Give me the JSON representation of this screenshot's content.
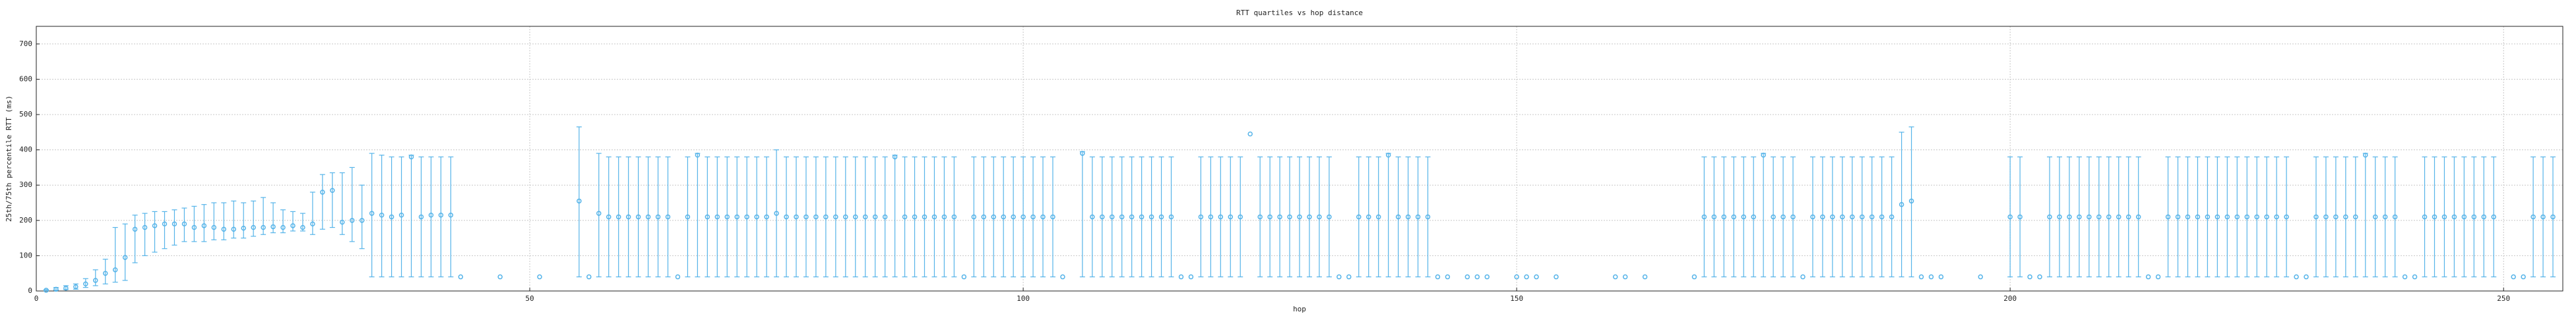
{
  "chart_data": {
    "type": "errorbar",
    "title": "RTT quartiles vs hop distance",
    "x_label": "hop",
    "y_label": "25th/75th percentile RTT (ms)",
    "color": "#56b4e9",
    "grid": true,
    "xlim": [
      0,
      256
    ],
    "ylim": [
      0,
      750
    ],
    "xticks": [
      0,
      50,
      100,
      150,
      200,
      250
    ],
    "yticks": [
      0,
      100,
      200,
      300,
      400,
      500,
      600,
      700
    ],
    "x": [
      1,
      2,
      3,
      4,
      5,
      6,
      7,
      8,
      9,
      10,
      11,
      12,
      13,
      14,
      15,
      16,
      17,
      18,
      19,
      20,
      21,
      22,
      23,
      24,
      25,
      26,
      27,
      28,
      29,
      30,
      31,
      32,
      33,
      34,
      35,
      36,
      37,
      38,
      39,
      40,
      41,
      42,
      43,
      47,
      51,
      55,
      56,
      57,
      58,
      59,
      60,
      61,
      62,
      63,
      64,
      65,
      66,
      67,
      68,
      69,
      70,
      71,
      72,
      73,
      74,
      75,
      76,
      77,
      78,
      79,
      80,
      81,
      82,
      83,
      84,
      85,
      86,
      87,
      88,
      89,
      90,
      91,
      92,
      93,
      94,
      95,
      96,
      97,
      98,
      99,
      100,
      101,
      102,
      103,
      104,
      106,
      107,
      108,
      109,
      110,
      111,
      112,
      113,
      114,
      115,
      116,
      117,
      118,
      119,
      120,
      121,
      122,
      123,
      124,
      125,
      126,
      127,
      128,
      129,
      130,
      131,
      132,
      133,
      134,
      135,
      136,
      137,
      138,
      139,
      140,
      141,
      142,
      143,
      145,
      146,
      147,
      150,
      151,
      152,
      154,
      160,
      161,
      163,
      168,
      169,
      170,
      171,
      172,
      173,
      174,
      175,
      176,
      177,
      178,
      179,
      180,
      181,
      182,
      183,
      184,
      185,
      186,
      187,
      188,
      189,
      190,
      191,
      192,
      193,
      197,
      200,
      201,
      202,
      203,
      204,
      205,
      206,
      207,
      208,
      209,
      210,
      211,
      212,
      213,
      214,
      215,
      216,
      217,
      218,
      219,
      220,
      221,
      222,
      223,
      224,
      225,
      226,
      227,
      228,
      229,
      230,
      231,
      232,
      233,
      234,
      235,
      236,
      237,
      238,
      239,
      240,
      241,
      242,
      243,
      244,
      245,
      246,
      247,
      248,
      249,
      251,
      252,
      253,
      254,
      255
    ],
    "values": [
      2,
      5,
      8,
      12,
      20,
      30,
      50,
      60,
      95,
      175,
      180,
      185,
      190,
      190,
      190,
      180,
      185,
      180,
      175,
      175,
      178,
      180,
      180,
      182,
      180,
      185,
      180,
      190,
      280,
      285,
      195,
      200,
      200,
      220,
      215,
      210,
      215,
      380,
      210,
      215,
      215,
      215,
      40,
      40,
      40,
      255,
      40,
      220,
      210,
      210,
      210,
      210,
      210,
      210,
      210,
      40,
      210,
      385,
      210,
      210,
      210,
      210,
      210,
      210,
      210,
      220,
      210,
      210,
      210,
      210,
      210,
      210,
      210,
      210,
      210,
      210,
      210,
      380,
      210,
      210,
      210,
      210,
      210,
      210,
      40,
      210,
      210,
      210,
      210,
      210,
      210,
      210,
      210,
      210,
      40,
      390,
      210,
      210,
      210,
      210,
      210,
      210,
      210,
      210,
      210,
      40,
      40,
      210,
      210,
      210,
      210,
      210,
      445,
      210,
      210,
      210,
      210,
      210,
      210,
      210,
      210,
      40,
      40,
      210,
      210,
      210,
      385,
      210,
      210,
      210,
      210,
      40,
      40,
      40,
      40,
      40,
      40,
      40,
      40,
      40,
      40,
      40,
      40,
      40,
      210,
      210,
      210,
      210,
      210,
      210,
      385,
      210,
      210,
      210,
      40,
      210,
      210,
      210,
      210,
      210,
      210,
      210,
      210,
      210,
      245,
      255,
      40,
      40,
      40,
      40,
      210,
      210,
      40,
      40,
      210,
      210,
      210,
      210,
      210,
      210,
      210,
      210,
      210,
      210,
      40,
      40,
      210,
      210,
      210,
      210,
      210,
      210,
      210,
      210,
      210,
      210,
      210,
      210,
      210,
      40,
      40,
      210,
      210,
      210,
      210,
      210,
      385,
      210,
      210,
      210,
      40,
      40,
      210,
      210,
      210,
      210,
      210,
      210,
      210,
      210,
      40,
      40,
      210,
      210,
      210
    ],
    "q1": [
      1,
      2,
      4,
      5,
      10,
      15,
      20,
      25,
      30,
      80,
      100,
      110,
      120,
      130,
      140,
      140,
      140,
      145,
      145,
      150,
      150,
      155,
      160,
      165,
      165,
      170,
      170,
      160,
      175,
      180,
      160,
      140,
      120,
      40,
      40,
      40,
      40,
      40,
      40,
      40,
      40,
      40,
      null,
      null,
      null,
      40,
      null,
      40,
      40,
      40,
      40,
      40,
      40,
      40,
      40,
      null,
      40,
      40,
      40,
      40,
      40,
      40,
      40,
      40,
      40,
      40,
      40,
      40,
      40,
      40,
      40,
      40,
      40,
      40,
      40,
      40,
      40,
      40,
      40,
      40,
      40,
      40,
      40,
      40,
      null,
      40,
      40,
      40,
      40,
      40,
      40,
      40,
      40,
      40,
      null,
      40,
      40,
      40,
      40,
      40,
      40,
      40,
      40,
      40,
      40,
      null,
      null,
      40,
      40,
      40,
      40,
      40,
      null,
      40,
      40,
      40,
      40,
      40,
      40,
      40,
      40,
      null,
      null,
      40,
      40,
      40,
      40,
      40,
      40,
      40,
      40,
      null,
      null,
      null,
      null,
      null,
      null,
      null,
      null,
      null,
      null,
      null,
      null,
      null,
      40,
      40,
      40,
      40,
      40,
      40,
      40,
      40,
      40,
      40,
      null,
      40,
      40,
      40,
      40,
      40,
      40,
      40,
      40,
      40,
      40,
      40,
      null,
      null,
      null,
      null,
      40,
      40,
      null,
      null,
      40,
      40,
      40,
      40,
      40,
      40,
      40,
      40,
      40,
      40,
      null,
      null,
      40,
      40,
      40,
      40,
      40,
      40,
      40,
      40,
      40,
      40,
      40,
      40,
      40,
      null,
      null,
      40,
      40,
      40,
      40,
      40,
      40,
      40,
      40,
      40,
      null,
      null,
      40,
      40,
      40,
      40,
      40,
      40,
      40,
      40,
      null,
      null,
      40,
      40,
      40
    ],
    "q3": [
      4,
      10,
      15,
      20,
      35,
      60,
      90,
      180,
      190,
      215,
      220,
      225,
      225,
      230,
      235,
      240,
      245,
      250,
      250,
      255,
      250,
      255,
      265,
      250,
      230,
      225,
      220,
      280,
      330,
      335,
      335,
      350,
      300,
      390,
      385,
      380,
      380,
      385,
      380,
      380,
      380,
      380,
      null,
      null,
      null,
      465,
      null,
      390,
      380,
      380,
      380,
      380,
      380,
      380,
      380,
      null,
      380,
      390,
      380,
      380,
      380,
      380,
      380,
      380,
      380,
      400,
      380,
      380,
      380,
      380,
      380,
      380,
      380,
      380,
      380,
      380,
      380,
      385,
      380,
      380,
      380,
      380,
      380,
      380,
      null,
      380,
      380,
      380,
      380,
      380,
      380,
      380,
      380,
      380,
      null,
      395,
      380,
      380,
      380,
      380,
      380,
      380,
      380,
      380,
      380,
      null,
      null,
      380,
      380,
      380,
      380,
      380,
      null,
      380,
      380,
      380,
      380,
      380,
      380,
      380,
      380,
      null,
      null,
      380,
      380,
      380,
      390,
      380,
      380,
      380,
      380,
      null,
      null,
      null,
      null,
      null,
      null,
      null,
      null,
      null,
      null,
      null,
      null,
      null,
      380,
      380,
      380,
      380,
      380,
      380,
      390,
      380,
      380,
      380,
      null,
      380,
      380,
      380,
      380,
      380,
      380,
      380,
      380,
      380,
      450,
      465,
      null,
      null,
      null,
      null,
      380,
      380,
      null,
      null,
      380,
      380,
      380,
      380,
      380,
      380,
      380,
      380,
      380,
      380,
      null,
      null,
      380,
      380,
      380,
      380,
      380,
      380,
      380,
      380,
      380,
      380,
      380,
      380,
      380,
      null,
      null,
      380,
      380,
      380,
      380,
      380,
      390,
      380,
      380,
      380,
      null,
      null,
      380,
      380,
      380,
      380,
      380,
      380,
      380,
      380,
      null,
      null,
      380,
      380,
      380
    ]
  }
}
